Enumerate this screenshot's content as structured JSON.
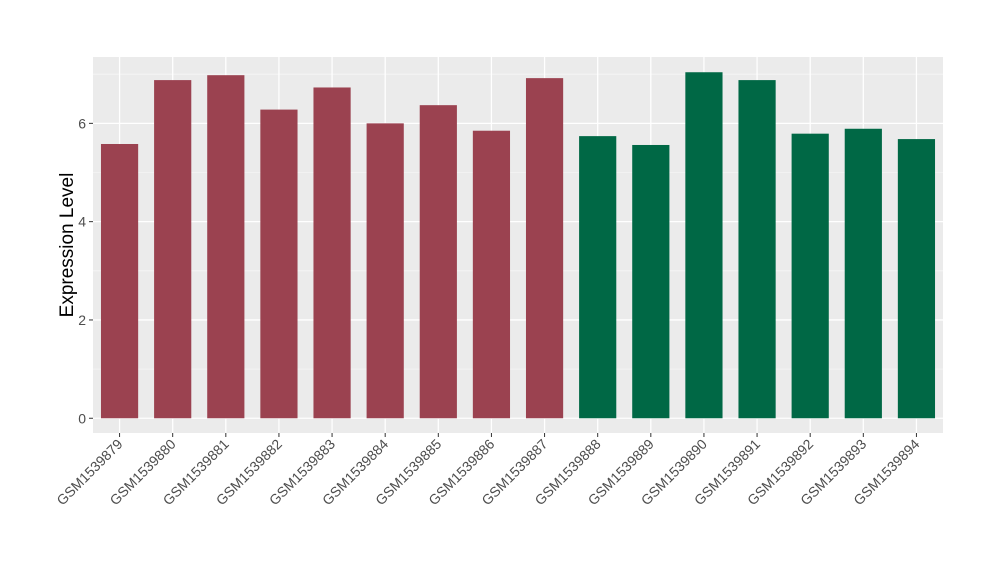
{
  "chart_data": {
    "type": "bar",
    "ylabel": "Expression Level",
    "xlabel": "",
    "ylim": [
      -0.3,
      7.35
    ],
    "yticks": [
      0,
      2,
      4,
      6
    ],
    "grid": true,
    "panel_background": "#ebebeb",
    "categories": [
      "GSM1539879",
      "GSM1539880",
      "GSM1539881",
      "GSM1539882",
      "GSM1539883",
      "GSM1539884",
      "GSM1539885",
      "GSM1539886",
      "GSM1539887",
      "GSM1539888",
      "GSM1539889",
      "GSM1539890",
      "GSM1539891",
      "GSM1539892",
      "GSM1539893",
      "GSM1539894"
    ],
    "values": [
      5.58,
      6.88,
      6.98,
      6.28,
      6.73,
      6.0,
      6.37,
      5.85,
      6.92,
      5.74,
      5.56,
      7.04,
      6.88,
      5.79,
      5.89,
      5.68
    ],
    "bar_colors": [
      "#9b4250",
      "#9b4250",
      "#9b4250",
      "#9b4250",
      "#9b4250",
      "#9b4250",
      "#9b4250",
      "#9b4250",
      "#9b4250",
      "#006845",
      "#006845",
      "#006845",
      "#006845",
      "#006845",
      "#006845",
      "#006845"
    ]
  }
}
